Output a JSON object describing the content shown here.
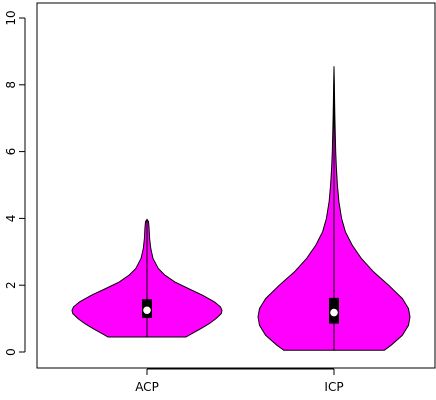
{
  "chart_data": {
    "type": "violin",
    "title": "",
    "xlabel": "",
    "ylabel": "",
    "ylim": [
      0,
      10
    ],
    "yticks": [
      0,
      2,
      4,
      6,
      8,
      10
    ],
    "categories": [
      "ACP",
      "ICP"
    ],
    "violin_color": "#ff00ff",
    "box_color": "#000000",
    "median_color": "#ffffff",
    "series": [
      {
        "category": "ACP",
        "whisker_min": 0.45,
        "q1": 1.02,
        "median": 1.25,
        "q3": 1.58,
        "whisker_max": 2.45,
        "data_max": 3.97,
        "density": [
          [
            0.45,
            0.52
          ],
          [
            0.55,
            0.6
          ],
          [
            0.7,
            0.72
          ],
          [
            0.85,
            0.83
          ],
          [
            1.0,
            0.92
          ],
          [
            1.15,
            0.99
          ],
          [
            1.25,
            1.0
          ],
          [
            1.35,
            0.98
          ],
          [
            1.5,
            0.9
          ],
          [
            1.7,
            0.74
          ],
          [
            1.9,
            0.55
          ],
          [
            2.1,
            0.37
          ],
          [
            2.3,
            0.24
          ],
          [
            2.5,
            0.15
          ],
          [
            2.8,
            0.08
          ],
          [
            3.1,
            0.05
          ],
          [
            3.4,
            0.035
          ],
          [
            3.7,
            0.028
          ],
          [
            3.9,
            0.02
          ],
          [
            3.97,
            0.0
          ]
        ]
      },
      {
        "category": "ICP",
        "whisker_min": 0.05,
        "q1": 0.85,
        "median": 1.18,
        "q3": 1.62,
        "whisker_max": 2.8,
        "data_max": 8.55,
        "density": [
          [
            0.05,
            0.66
          ],
          [
            0.2,
            0.75
          ],
          [
            0.5,
            0.9
          ],
          [
            0.8,
            0.98
          ],
          [
            1.05,
            1.0
          ],
          [
            1.3,
            0.98
          ],
          [
            1.6,
            0.9
          ],
          [
            2.0,
            0.72
          ],
          [
            2.4,
            0.52
          ],
          [
            2.8,
            0.36
          ],
          [
            3.2,
            0.24
          ],
          [
            3.6,
            0.15
          ],
          [
            4.0,
            0.1
          ],
          [
            4.5,
            0.065
          ],
          [
            5.0,
            0.045
          ],
          [
            5.5,
            0.032
          ],
          [
            6.0,
            0.023
          ],
          [
            6.5,
            0.017
          ],
          [
            7.0,
            0.012
          ],
          [
            7.5,
            0.008
          ],
          [
            8.0,
            0.005
          ],
          [
            8.55,
            0.0
          ]
        ]
      }
    ]
  }
}
